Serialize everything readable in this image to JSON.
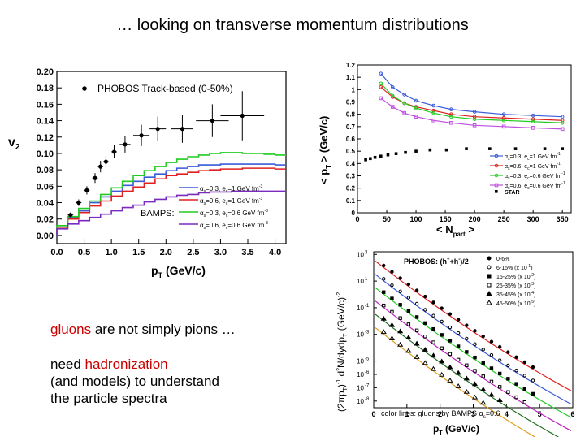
{
  "slide": {
    "title": "… looking on transverse momentum distributions",
    "text1_highlight": "gluons",
    "text1_rest": " are not simply pions …",
    "text2_line1_pre": "need ",
    "text2_line1_highlight": "hadronization",
    "text2_line2": " (and models) to understand",
    "text2_line3": "the particle spectra"
  },
  "chart_data": [
    {
      "type": "line",
      "ylabel": "v",
      "ylabel_sub": "2",
      "xlabel": "p",
      "xlabel_sub": "T",
      "xlabel_unit": " (GeV/c)",
      "xlim": [
        0,
        4.2
      ],
      "ylim": [
        -0.01,
        0.2
      ],
      "xticks": [
        0.0,
        0.5,
        1.0,
        1.5,
        2.0,
        2.5,
        3.0,
        3.5,
        4.0
      ],
      "xtick_labels": [
        "0.0",
        "0.5",
        "1.0",
        "1.5",
        "2.0",
        "2.5",
        "3.0",
        "3.5",
        "4.0"
      ],
      "yticks": [
        0.0,
        0.02,
        0.04,
        0.06,
        0.08,
        0.1,
        0.12,
        0.14,
        0.16,
        0.18,
        0.2
      ],
      "ytick_labels": [
        "0.00",
        "0.02",
        "0.04",
        "0.06",
        "0.08",
        "0.10",
        "0.12",
        "0.14",
        "0.16",
        "0.18",
        "0.20"
      ],
      "legend_top": "PHOBOS Track-based (0-50%)",
      "label_bamps": "BAMPS:",
      "data_points": {
        "x": [
          0.25,
          0.4,
          0.55,
          0.7,
          0.8,
          0.9,
          1.05,
          1.25,
          1.55,
          1.85,
          2.3,
          2.85,
          3.4
        ],
        "y": [
          0.025,
          0.04,
          0.055,
          0.07,
          0.084,
          0.09,
          0.102,
          0.111,
          0.122,
          0.13,
          0.13,
          0.14,
          0.146
        ],
        "xerr": [
          0.05,
          0.05,
          0.05,
          0.05,
          0.05,
          0.05,
          0.05,
          0.1,
          0.15,
          0.15,
          0.2,
          0.3,
          0.4
        ],
        "yerr": [
          0.003,
          0.004,
          0.005,
          0.006,
          0.007,
          0.007,
          0.008,
          0.01,
          0.013,
          0.015,
          0.017,
          0.02,
          0.03
        ]
      },
      "bin_edges": [
        0.0,
        0.2,
        0.4,
        0.6,
        0.8,
        1.0,
        1.2,
        1.4,
        1.6,
        1.8,
        2.0,
        2.2,
        2.4,
        2.6,
        2.8,
        3.0,
        3.2,
        3.4,
        3.6,
        3.8,
        4.0,
        4.2
      ],
      "series": [
        {
          "name_pre": "α",
          "name_mid": "=0.3, e",
          "name_post": "=1 GeV fm",
          "name_sup": "-3",
          "color": "#3b5bd9",
          "values": [
            0.012,
            0.022,
            0.03,
            0.04,
            0.047,
            0.054,
            0.061,
            0.066,
            0.071,
            0.075,
            0.079,
            0.082,
            0.084,
            0.086,
            0.086,
            0.087,
            0.087,
            0.087,
            0.087,
            0.087,
            0.086
          ]
        },
        {
          "name_pre": "α",
          "name_mid": "=0.6, e",
          "name_post": "=1 GeV fm",
          "name_sup": "-3",
          "color": "#e02020",
          "values": [
            0.01,
            0.02,
            0.028,
            0.036,
            0.042,
            0.048,
            0.054,
            0.059,
            0.064,
            0.069,
            0.073,
            0.075,
            0.077,
            0.079,
            0.08,
            0.081,
            0.081,
            0.082,
            0.082,
            0.082,
            0.081
          ]
        },
        {
          "name_pre": "α",
          "name_mid": "=0.3, e",
          "name_post": "=0.6 GeV fm",
          "name_sup": "-3",
          "color": "#22cc22",
          "values": [
            0.012,
            0.023,
            0.033,
            0.042,
            0.05,
            0.058,
            0.066,
            0.073,
            0.079,
            0.084,
            0.089,
            0.093,
            0.096,
            0.098,
            0.1,
            0.101,
            0.101,
            0.1,
            0.1,
            0.099,
            0.098
          ]
        },
        {
          "name_pre": "α",
          "name_mid": "=0.6, e",
          "name_post": "=0.6 GeV fm",
          "name_sup": "-3",
          "color": "#7a2ac0",
          "values": [
            0.008,
            0.014,
            0.018,
            0.022,
            0.026,
            0.03,
            0.034,
            0.037,
            0.041,
            0.044,
            0.047,
            0.049,
            0.05,
            0.052,
            0.053,
            0.053,
            0.054,
            0.054,
            0.054,
            0.054,
            0.054
          ]
        }
      ]
    },
    {
      "type": "line",
      "ylabel": "< p",
      "ylabel_sub": "T",
      "ylabel_unit": " > (GeV/c)",
      "xlabel": "< N",
      "xlabel_sub": "part",
      "xlabel_unit": " >",
      "xlim": [
        0,
        365
      ],
      "ylim": [
        0,
        1.2
      ],
      "xticks": [
        0,
        50,
        100,
        150,
        200,
        250,
        300,
        350
      ],
      "xtick_labels": [
        "0",
        "50",
        "100",
        "150",
        "200",
        "250",
        "300",
        "350"
      ],
      "yticks": [
        0,
        0.1,
        0.2,
        0.3,
        0.4,
        0.5,
        0.6,
        0.7,
        0.8,
        0.9,
        1.0,
        1.1,
        1.2
      ],
      "ytick_labels": [
        "0",
        "0.1",
        "0.2",
        "0.3",
        "0.4",
        "0.5",
        "0.6",
        "0.7",
        "0.8",
        "0.9",
        "1",
        "1.1",
        "1.2"
      ],
      "star": {
        "name": "STAR",
        "x": [
          14,
          22,
          30,
          40,
          52,
          66,
          82,
          100,
          124,
          152,
          186,
          226,
          270,
          320,
          350
        ],
        "y": [
          0.43,
          0.44,
          0.45,
          0.46,
          0.47,
          0.48,
          0.49,
          0.5,
          0.51,
          0.51,
          0.52,
          0.52,
          0.52,
          0.52,
          0.52
        ]
      },
      "series": [
        {
          "name_pre": "α",
          "name_mid": "=0.3, e",
          "name_post": "=1 GeV fm",
          "name_sup": "-1",
          "color": "#3b5bd9",
          "marker": "circle",
          "x": [
            40,
            60,
            80,
            100,
            130,
            160,
            200,
            250,
            300,
            350
          ],
          "y": [
            1.13,
            1.02,
            0.96,
            0.91,
            0.87,
            0.84,
            0.82,
            0.8,
            0.79,
            0.78
          ]
        },
        {
          "name_pre": "α",
          "name_mid": "=0.6, e",
          "name_post": "=1 GeV fm",
          "name_sup": "-1",
          "color": "#e02020",
          "marker": "circle",
          "x": [
            40,
            60,
            80,
            100,
            130,
            160,
            200,
            250,
            300,
            350
          ],
          "y": [
            1.02,
            0.94,
            0.89,
            0.86,
            0.83,
            0.8,
            0.78,
            0.77,
            0.76,
            0.75
          ]
        },
        {
          "name_pre": "α",
          "name_mid": "=0.3, e",
          "name_post": "=0.6 GeV fm",
          "name_sup": "-1",
          "color": "#22cc22",
          "marker": "circle",
          "x": [
            40,
            60,
            80,
            100,
            130,
            160,
            200,
            250,
            300,
            350
          ],
          "y": [
            1.05,
            0.95,
            0.89,
            0.85,
            0.81,
            0.78,
            0.76,
            0.75,
            0.74,
            0.73
          ]
        },
        {
          "name_pre": "α",
          "name_mid": "=0.6, e",
          "name_post": "=0.6 GeV fm",
          "name_sup": "-1",
          "color": "#c050e0",
          "marker": "square",
          "x": [
            40,
            60,
            80,
            100,
            130,
            160,
            200,
            250,
            300,
            350
          ],
          "y": [
            0.93,
            0.86,
            0.81,
            0.78,
            0.75,
            0.73,
            0.71,
            0.7,
            0.69,
            0.68
          ]
        }
      ]
    },
    {
      "type": "scatter",
      "ylabel": "(2πp",
      "ylabel_sub": "T",
      "ylabel_mid": ")",
      "ylabel_sup": "-1",
      "ylabel_rest": " d",
      "ylabel_sup2": "2",
      "ylabel_rest2": "N/dydp",
      "ylabel_sub2": "T",
      "ylabel_unit": " (GeV/c)",
      "ylabel_sup3": "-2",
      "xlabel": "p",
      "xlabel_sub": "T",
      "xlabel_unit": " (GeV/c)",
      "xlim": [
        0,
        6
      ],
      "ylim_log10": [
        -8.5,
        3.2
      ],
      "xticks": [
        0,
        1,
        2,
        3,
        4,
        5,
        6
      ],
      "xtick_labels": [
        "0",
        "1",
        "2",
        "3",
        "4",
        "5",
        "6"
      ],
      "yticks_log10": [
        3,
        1,
        -1,
        -3,
        -5,
        -6,
        -7,
        -8
      ],
      "ytick_labels": [
        "10",
        "10",
        "10",
        "10",
        "10",
        "10",
        "10",
        "10"
      ],
      "ytick_exps": [
        "3",
        "1",
        "-1",
        "-3",
        "-5",
        "-6",
        "-7",
        "-8"
      ],
      "legend_title": "PHOBOS:  (h",
      "legend_title_sup1": "+",
      "legend_title_mid": "+h",
      "legend_title_sup2": "-",
      "legend_title_end": ")/2",
      "footer": "color lines: gluons by BAMPS α",
      "footer_sub": "s",
      "footer_end": "=0.6",
      "centralities": [
        {
          "label": "0-6%",
          "marker": "filled-circle",
          "color": "#e02020",
          "a": 2.6,
          "b": 1.95,
          "c": 0.05
        },
        {
          "label": "6-15% (x 10",
          "exp": "-1",
          "end": ")",
          "marker": "open-circle",
          "color": "#3b5bd9",
          "a": 1.6,
          "b": 1.95,
          "c": 0.05
        },
        {
          "label": "15-25% (x 10",
          "exp": "-2",
          "end": ")",
          "marker": "filled-square",
          "color": "#22cc22",
          "a": 0.6,
          "b": 1.95,
          "c": 0.05
        },
        {
          "label": "25-35% (x 10",
          "exp": "-3",
          "end": ")",
          "marker": "open-square",
          "color": "#c020c0",
          "a": -0.4,
          "b": 1.95,
          "c": 0.05
        },
        {
          "label": "35-45% (x 10",
          "exp": "-4",
          "end": ")",
          "marker": "filled-triangle",
          "color": "#207020",
          "a": -1.4,
          "b": 1.95,
          "c": 0.05
        },
        {
          "label": "45-50% (x 10",
          "exp": "-5",
          "end": ")",
          "marker": "open-triangle",
          "color": "#e0a020",
          "a": -2.4,
          "b": 1.95,
          "c": 0.05
        }
      ]
    }
  ]
}
